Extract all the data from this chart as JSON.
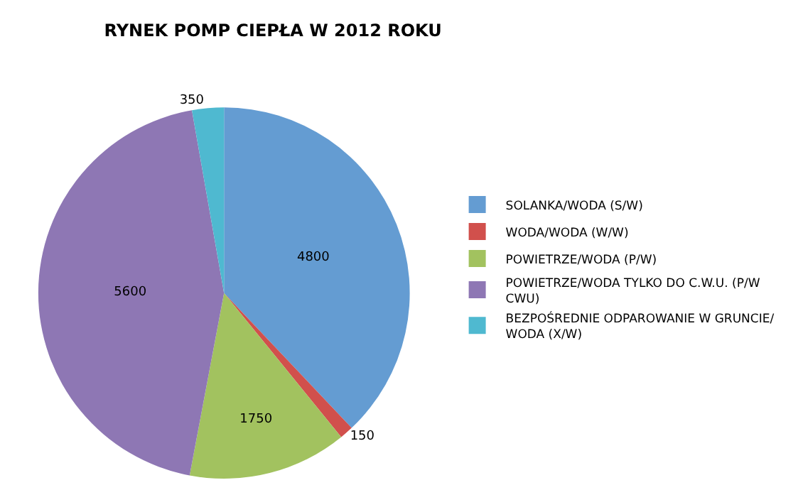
{
  "chart_data": {
    "type": "pie",
    "title": "RYNEK POMP CIEPŁA W 2012 ROKU",
    "categories": [
      "SOLANKA/WODA (S/W)",
      "WODA/WODA (W/W)",
      "POWIETRZE/WODA (P/W)",
      "POWIETRZE/WODA TYLKO DO C.W.U. (P/W CWU)",
      "BEZPOŚREDNIE ODPAROWANIE W GRUNCIE/ WODA (X/W)"
    ],
    "values": [
      4800,
      150,
      1750,
      5600,
      350
    ],
    "colors": [
      "#649cd2",
      "#d1504c",
      "#a2c25f",
      "#8e77b4",
      "#4fb9d0"
    ],
    "data_labels": true,
    "legend": "right"
  }
}
